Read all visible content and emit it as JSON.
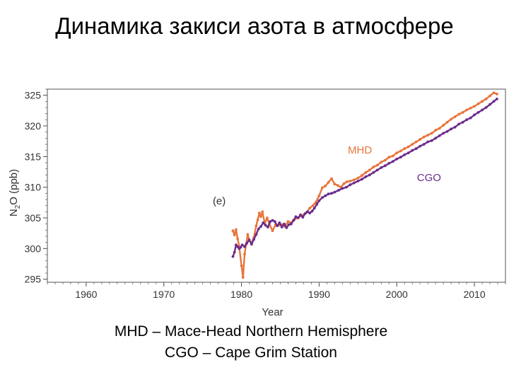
{
  "slide": {
    "title": "Динамика закиси азота в атмосфере",
    "caption_lines": [
      "MHD – Mace-Head Northern Hemisphere",
      "CGO – Cape Grim Station"
    ]
  },
  "chart_data": {
    "type": "scatter",
    "title": "",
    "panel_label": "(e)",
    "xlabel": "Year",
    "ylabel_main": "N",
    "ylabel_sub": "2",
    "ylabel_rest": "O (ppb)",
    "xlim": [
      1955,
      2014
    ],
    "ylim": [
      294.5,
      326
    ],
    "x_ticks": [
      1960,
      1970,
      1980,
      1990,
      2000,
      2010
    ],
    "y_ticks": [
      295,
      300,
      305,
      310,
      315,
      320,
      325
    ],
    "grid": true,
    "legend": "inline labels near series",
    "series": [
      {
        "name": "MHD",
        "color": "#E8743B",
        "points": [
          [
            1978.9,
            302.9
          ],
          [
            1979.1,
            302.2
          ],
          [
            1979.3,
            303.1
          ],
          [
            1979.5,
            301.6
          ],
          [
            1979.7,
            300.4
          ],
          [
            1980.0,
            297.2
          ],
          [
            1980.2,
            295.3
          ],
          [
            1980.4,
            299.1
          ],
          [
            1980.6,
            300.7
          ],
          [
            1980.8,
            302.3
          ],
          [
            1981.0,
            301.3
          ],
          [
            1981.3,
            300.9
          ],
          [
            1981.6,
            301.8
          ],
          [
            1981.9,
            303.7
          ],
          [
            1982.1,
            304.7
          ],
          [
            1982.3,
            305.8
          ],
          [
            1982.5,
            305.2
          ],
          [
            1982.7,
            306.0
          ],
          [
            1983.0,
            304.1
          ],
          [
            1983.3,
            305.0
          ],
          [
            1983.6,
            304.0
          ],
          [
            1984.0,
            302.9
          ],
          [
            1984.4,
            303.9
          ],
          [
            1984.8,
            303.8
          ],
          [
            1985.2,
            303.9
          ],
          [
            1985.6,
            303.6
          ],
          [
            1986.0,
            304.4
          ],
          [
            1986.4,
            304.2
          ],
          [
            1986.8,
            304.7
          ],
          [
            1987.2,
            305.0
          ],
          [
            1987.6,
            305.3
          ],
          [
            1988.0,
            305.5
          ],
          [
            1988.4,
            305.9
          ],
          [
            1988.8,
            306.6
          ],
          [
            1989.2,
            307.0
          ],
          [
            1989.6,
            307.6
          ],
          [
            1990.0,
            308.6
          ],
          [
            1990.4,
            309.9
          ],
          [
            1990.8,
            310.2
          ],
          [
            1991.2,
            310.8
          ],
          [
            1991.6,
            311.4
          ],
          [
            1992.0,
            310.5
          ],
          [
            1992.4,
            310.3
          ],
          [
            1992.8,
            310.0
          ],
          [
            1993.2,
            310.6
          ],
          [
            1993.6,
            310.9
          ],
          [
            1994.0,
            311.0
          ],
          [
            1994.5,
            311.2
          ],
          [
            1995.0,
            311.5
          ],
          [
            1995.5,
            311.9
          ],
          [
            1996.0,
            312.4
          ],
          [
            1996.5,
            312.8
          ],
          [
            1997.0,
            313.3
          ],
          [
            1997.5,
            313.6
          ],
          [
            1998.0,
            314.1
          ],
          [
            1998.5,
            314.4
          ],
          [
            1999.0,
            314.9
          ],
          [
            1999.5,
            315.1
          ],
          [
            2000.0,
            315.6
          ],
          [
            2000.5,
            315.9
          ],
          [
            2001.0,
            316.3
          ],
          [
            2001.5,
            316.6
          ],
          [
            2002.0,
            317.0
          ],
          [
            2002.5,
            317.4
          ],
          [
            2003.0,
            317.8
          ],
          [
            2003.5,
            318.2
          ],
          [
            2004.0,
            318.5
          ],
          [
            2004.5,
            318.8
          ],
          [
            2005.0,
            319.3
          ],
          [
            2005.5,
            319.6
          ],
          [
            2006.0,
            320.1
          ],
          [
            2006.5,
            320.6
          ],
          [
            2007.0,
            321.1
          ],
          [
            2007.5,
            321.5
          ],
          [
            2008.0,
            321.9
          ],
          [
            2008.5,
            322.2
          ],
          [
            2009.0,
            322.6
          ],
          [
            2009.5,
            322.9
          ],
          [
            2010.0,
            323.2
          ],
          [
            2010.5,
            323.6
          ],
          [
            2011.0,
            324.0
          ],
          [
            2011.5,
            324.4
          ],
          [
            2012.0,
            324.9
          ],
          [
            2012.5,
            325.4
          ],
          [
            2012.9,
            325.2
          ]
        ]
      },
      {
        "name": "CGO",
        "color": "#6B2C8C",
        "points": [
          [
            1978.9,
            298.7
          ],
          [
            1979.1,
            299.4
          ],
          [
            1979.3,
            300.6
          ],
          [
            1979.5,
            300.3
          ],
          [
            1979.7,
            300.0
          ],
          [
            1979.9,
            300.2
          ],
          [
            1980.1,
            300.6
          ],
          [
            1980.4,
            300.3
          ],
          [
            1980.7,
            300.9
          ],
          [
            1981.0,
            301.4
          ],
          [
            1981.3,
            300.7
          ],
          [
            1981.6,
            301.5
          ],
          [
            1981.9,
            302.3
          ],
          [
            1982.2,
            303.2
          ],
          [
            1982.5,
            303.6
          ],
          [
            1982.8,
            304.2
          ],
          [
            1983.1,
            303.8
          ],
          [
            1983.4,
            303.5
          ],
          [
            1983.7,
            304.4
          ],
          [
            1984.0,
            304.6
          ],
          [
            1984.3,
            304.4
          ],
          [
            1984.6,
            303.7
          ],
          [
            1984.9,
            304.2
          ],
          [
            1985.2,
            303.5
          ],
          [
            1985.5,
            304.0
          ],
          [
            1985.8,
            303.4
          ],
          [
            1986.1,
            303.9
          ],
          [
            1986.4,
            304.0
          ],
          [
            1986.7,
            304.6
          ],
          [
            1987.0,
            305.2
          ],
          [
            1987.3,
            305.0
          ],
          [
            1987.6,
            305.5
          ],
          [
            1987.9,
            305.1
          ],
          [
            1988.2,
            305.7
          ],
          [
            1988.5,
            306.0
          ],
          [
            1988.8,
            305.8
          ],
          [
            1989.1,
            306.1
          ],
          [
            1989.4,
            306.6
          ],
          [
            1989.7,
            307.2
          ],
          [
            1990.0,
            307.8
          ],
          [
            1990.4,
            308.3
          ],
          [
            1990.8,
            308.6
          ],
          [
            1991.2,
            308.9
          ],
          [
            1991.6,
            309.0
          ],
          [
            1992.0,
            309.2
          ],
          [
            1992.5,
            309.5
          ],
          [
            1993.0,
            309.8
          ],
          [
            1993.5,
            310.0
          ],
          [
            1994.0,
            310.4
          ],
          [
            1994.5,
            310.7
          ],
          [
            1995.0,
            311.0
          ],
          [
            1995.5,
            311.3
          ],
          [
            1996.0,
            311.7
          ],
          [
            1996.5,
            312.0
          ],
          [
            1997.0,
            312.4
          ],
          [
            1997.5,
            312.8
          ],
          [
            1998.0,
            313.2
          ],
          [
            1998.5,
            313.5
          ],
          [
            1999.0,
            313.9
          ],
          [
            1999.5,
            314.2
          ],
          [
            2000.0,
            314.6
          ],
          [
            2000.5,
            314.9
          ],
          [
            2001.0,
            315.3
          ],
          [
            2001.5,
            315.6
          ],
          [
            2002.0,
            316.0
          ],
          [
            2002.5,
            316.3
          ],
          [
            2003.0,
            316.7
          ],
          [
            2003.5,
            317.0
          ],
          [
            2004.0,
            317.4
          ],
          [
            2004.5,
            317.6
          ],
          [
            2005.0,
            318.0
          ],
          [
            2005.5,
            318.4
          ],
          [
            2006.0,
            318.8
          ],
          [
            2006.5,
            319.1
          ],
          [
            2007.0,
            319.5
          ],
          [
            2007.5,
            319.8
          ],
          [
            2008.0,
            320.3
          ],
          [
            2008.5,
            320.6
          ],
          [
            2009.0,
            321.0
          ],
          [
            2009.5,
            321.3
          ],
          [
            2010.0,
            321.8
          ],
          [
            2010.5,
            322.2
          ],
          [
            2011.0,
            322.6
          ],
          [
            2011.5,
            323.0
          ],
          [
            2012.0,
            323.5
          ],
          [
            2012.5,
            324.0
          ],
          [
            2012.9,
            324.4
          ]
        ]
      }
    ]
  }
}
